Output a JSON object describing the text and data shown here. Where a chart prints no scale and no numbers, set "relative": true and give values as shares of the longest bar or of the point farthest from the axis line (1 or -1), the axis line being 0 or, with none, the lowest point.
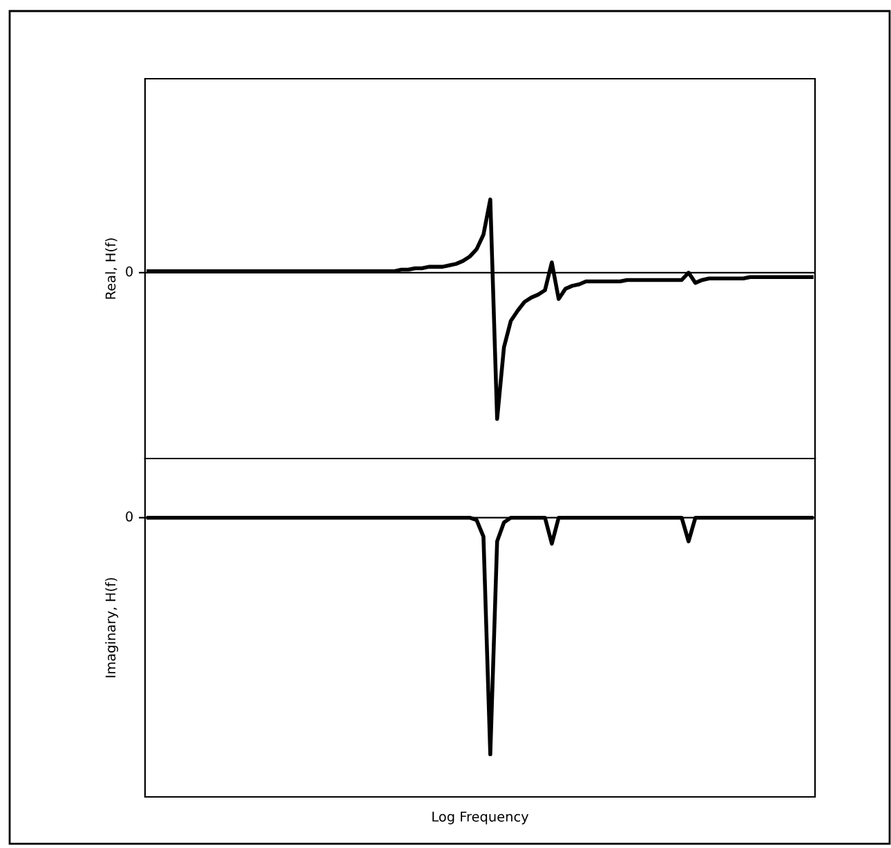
{
  "chart_data": [
    {
      "type": "line",
      "ylabel": "Real, H(f)",
      "relative": true,
      "annotations": [
        "0"
      ],
      "grid": false,
      "legend": false,
      "line_style": "solid",
      "ref_lines": [
        {
          "axis": "y",
          "value": 0,
          "color": "#000000"
        }
      ],
      "categories": [
        null,
        null,
        null,
        null,
        null,
        null,
        null,
        null,
        null,
        null,
        null,
        null,
        null,
        null,
        null,
        null,
        null,
        null,
        null,
        null,
        null,
        null,
        null,
        null,
        null,
        null,
        null,
        null,
        null,
        null,
        null,
        null,
        null,
        null,
        null,
        null,
        null,
        null,
        null,
        null,
        null,
        null,
        null,
        null,
        null,
        null,
        null,
        null,
        null,
        null,
        null,
        null,
        null,
        null,
        null,
        null,
        null,
        null,
        null,
        null,
        null,
        null,
        null,
        null,
        null,
        null,
        null,
        null,
        null,
        null,
        null,
        null,
        null,
        null,
        null,
        null,
        null,
        null,
        null,
        null,
        null,
        null,
        null,
        null,
        null,
        null,
        null,
        null,
        null,
        null,
        null,
        null,
        null,
        null,
        null,
        null,
        null,
        null
      ],
      "series": [
        {
          "color": "#000000",
          "values": [
            0.01,
            0.01,
            0.01,
            0.01,
            0.01,
            0.01,
            0.01,
            0.01,
            0.01,
            0.01,
            0.01,
            0.01,
            0.01,
            0.01,
            0.01,
            0.01,
            0.01,
            0.01,
            0.01,
            0.01,
            0.01,
            0.01,
            0.01,
            0.01,
            0.01,
            0.01,
            0.01,
            0.01,
            0.01,
            0.01,
            0.01,
            0.01,
            0.01,
            0.01,
            0.01,
            0.01,
            0.01,
            0.02,
            0.02,
            0.03,
            0.03,
            0.04,
            0.04,
            0.04,
            0.05,
            0.06,
            0.08,
            0.11,
            0.16,
            0.26,
            0.5,
            -1,
            -0.51,
            -0.33,
            -0.26,
            -0.2,
            -0.17,
            -0.15,
            -0.12,
            0.07,
            -0.18,
            -0.11,
            -0.09,
            -0.08,
            -0.06,
            -0.06,
            -0.06,
            -0.06,
            -0.06,
            -0.06,
            -0.05,
            -0.05,
            -0.05,
            -0.05,
            -0.05,
            -0.05,
            -0.05,
            -0.05,
            -0.05,
            0.0,
            -0.07,
            -0.05,
            -0.04,
            -0.04,
            -0.04,
            -0.04,
            -0.04,
            -0.04,
            -0.03,
            -0.03,
            -0.03,
            -0.03,
            -0.03,
            -0.03,
            -0.03,
            -0.03,
            -0.03,
            -0.03
          ]
        }
      ]
    },
    {
      "type": "line",
      "ylabel": "Imaginary, H(f)",
      "xlabel": "Log Frequency",
      "relative": true,
      "annotations": [
        "0"
      ],
      "grid": false,
      "legend": false,
      "line_style": "solid",
      "ref_lines": [
        {
          "axis": "y",
          "value": 0,
          "color": "#000000"
        }
      ],
      "categories": [
        null,
        null,
        null,
        null,
        null,
        null,
        null,
        null,
        null,
        null,
        null,
        null,
        null,
        null,
        null,
        null,
        null,
        null,
        null,
        null,
        null,
        null,
        null,
        null,
        null,
        null,
        null,
        null,
        null,
        null,
        null,
        null,
        null,
        null,
        null,
        null,
        null,
        null,
        null,
        null,
        null,
        null,
        null,
        null,
        null,
        null,
        null,
        null,
        null,
        null,
        null,
        null,
        null,
        null,
        null,
        null,
        null,
        null,
        null,
        null,
        null,
        null,
        null,
        null,
        null,
        null,
        null,
        null,
        null,
        null,
        null,
        null,
        null,
        null,
        null,
        null,
        null,
        null,
        null,
        null,
        null,
        null,
        null,
        null,
        null,
        null,
        null,
        null,
        null,
        null,
        null,
        null,
        null,
        null,
        null,
        null,
        null,
        null
      ],
      "series": [
        {
          "color": "#000000",
          "values": [
            0,
            0,
            0,
            0,
            0,
            0,
            0,
            0,
            0,
            0,
            0,
            0,
            0,
            0,
            0,
            0,
            0,
            0,
            0,
            0,
            0,
            0,
            0,
            0,
            0,
            0,
            0,
            0,
            0,
            0,
            0,
            0,
            0,
            0,
            0,
            0,
            0,
            0,
            0,
            0,
            0,
            0,
            0,
            0,
            0,
            0,
            0,
            0,
            -0.01,
            -0.08,
            -1,
            -0.1,
            -0.02,
            0,
            0,
            0,
            0,
            0,
            0,
            -0.11,
            0,
            0,
            0,
            0,
            0,
            0,
            0,
            0,
            0,
            0,
            0,
            0,
            0,
            0,
            0,
            0,
            0,
            0,
            0,
            -0.1,
            0,
            0,
            0,
            0,
            0,
            0,
            0,
            0,
            0,
            0,
            0,
            0,
            0,
            0,
            0,
            0,
            0,
            0
          ]
        }
      ]
    }
  ]
}
